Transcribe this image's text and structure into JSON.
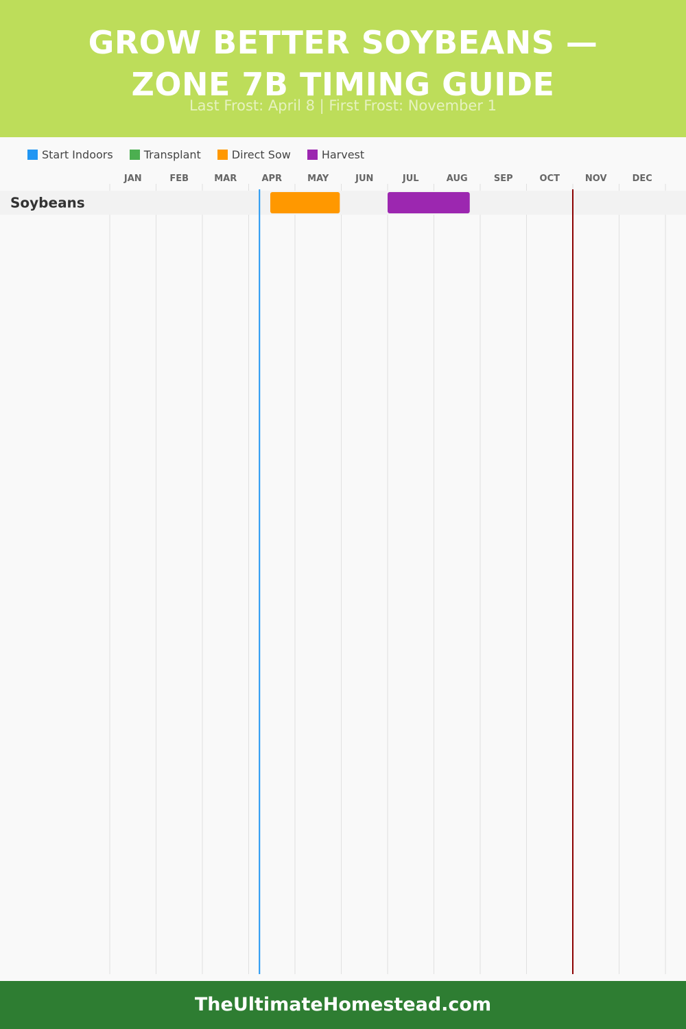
{
  "header": {
    "title_line1": "GROW BETTER SOYBEANS —",
    "title_line2": "ZONE 7B TIMING GUIDE",
    "subtitle": "Last Frost: April 8 | First Frost: November 1"
  },
  "colors": {
    "header_bg": "#bddd5a",
    "footer_bg": "#2e7d32",
    "start_indoors": "#2196f3",
    "transplant": "#4caf50",
    "direct_sow": "#ff9800",
    "harvest": "#9c27b0",
    "last_frost_line": "#2196f3",
    "first_frost_line": "#8b0000"
  },
  "chart_data": {
    "type": "gantt",
    "legend": [
      {
        "label": "Start Indoors",
        "color": "#2196f3"
      },
      {
        "label": "Transplant",
        "color": "#4caf50"
      },
      {
        "label": "Direct Sow",
        "color": "#ff9800"
      },
      {
        "label": "Harvest",
        "color": "#9c27b0"
      }
    ],
    "months": [
      "JAN",
      "FEB",
      "MAR",
      "APR",
      "MAY",
      "JUN",
      "JUL",
      "AUG",
      "SEP",
      "OCT",
      "NOV",
      "DEC"
    ],
    "rows": [
      {
        "crop": "Soybeans",
        "bars": [
          {
            "activity": "Direct Sow",
            "start": "April 15",
            "end": "May 31",
            "color": "#ff9800"
          },
          {
            "activity": "Harvest",
            "start": "July 1",
            "end": "August 25",
            "color": "#9c27b0"
          }
        ]
      }
    ],
    "frost_lines": [
      {
        "name": "Last Frost",
        "date": "April 8",
        "color": "#2196f3"
      },
      {
        "name": "First Frost",
        "date": "November 1",
        "color": "#8b0000"
      }
    ]
  },
  "footer": {
    "text": "TheUltimateHomestead.com"
  }
}
